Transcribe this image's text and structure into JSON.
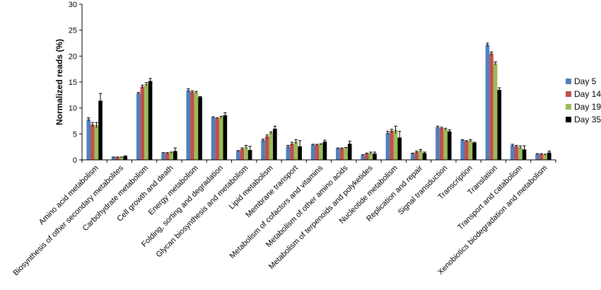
{
  "chart_data": {
    "type": "bar",
    "ylabel": "Normalized reads (%)",
    "ylim": [
      0,
      30
    ],
    "yticks": [
      0,
      5,
      10,
      15,
      20,
      25,
      30
    ],
    "categories": [
      "Amino acid metabolism",
      "Biosynthesis of other secondary metabolites",
      "Carbohydrate metabolism",
      "Cell growth and death",
      "Energy metabolism",
      "Folding, sorting and degradation",
      "Glycan biosynthesis and metabolism",
      "Lipid metabolism",
      "Membrane transport",
      "Metabolism of cofactors and vitamins",
      "Metabolism of other amino acids",
      "Metabolism of terpenoids and polyketides",
      "Nucleotide metabolism",
      "Replication and repair",
      "Signal transduction",
      "Transcription",
      "Translation",
      "Transport and catabolism",
      "Xenobiotics biodegradation and metabolism"
    ],
    "series": [
      {
        "name": "Day 5",
        "color": "#4f81bd",
        "values": [
          7.8,
          0.5,
          12.8,
          1.3,
          13.4,
          8.2,
          1.7,
          3.8,
          2.6,
          2.9,
          2.2,
          0.9,
          5.2,
          1.2,
          6.3,
          3.8,
          22.2,
          2.8,
          1.1
        ],
        "errors": [
          0.3,
          0.05,
          0.2,
          0.1,
          0.3,
          0.1,
          0.1,
          0.2,
          0.2,
          0.1,
          0.1,
          0.1,
          0.3,
          0.1,
          0.2,
          0.1,
          0.3,
          0.2,
          0.1
        ]
      },
      {
        "name": "Day 14",
        "color": "#c0504d",
        "values": [
          6.8,
          0.5,
          14.1,
          1.3,
          13.1,
          8.0,
          2.1,
          4.5,
          3.1,
          2.9,
          2.2,
          1.2,
          5.6,
          1.5,
          6.1,
          3.6,
          20.5,
          2.6,
          1.1
        ],
        "errors": [
          0.4,
          0.05,
          0.3,
          0.1,
          0.2,
          0.1,
          0.2,
          0.3,
          0.3,
          0.1,
          0.1,
          0.1,
          0.3,
          0.2,
          0.2,
          0.1,
          0.3,
          0.2,
          0.1
        ]
      },
      {
        "name": "Day 19",
        "color": "#9bbb59",
        "values": [
          6.7,
          0.5,
          14.6,
          1.4,
          13.0,
          8.2,
          2.5,
          5.2,
          3.5,
          3.0,
          2.3,
          1.3,
          5.8,
          1.8,
          5.9,
          3.7,
          18.6,
          2.4,
          1.0
        ],
        "errors": [
          0.5,
          0.05,
          0.3,
          0.1,
          0.2,
          0.2,
          0.3,
          0.2,
          0.4,
          0.1,
          0.1,
          0.2,
          0.7,
          0.2,
          0.2,
          0.2,
          0.3,
          0.3,
          0.1
        ]
      },
      {
        "name": "Day 35",
        "color": "#000000",
        "values": [
          11.4,
          0.7,
          15.2,
          1.7,
          12.1,
          8.6,
          1.9,
          6.0,
          2.6,
          3.5,
          3.1,
          1.2,
          4.3,
          1.3,
          5.5,
          3.3,
          13.5,
          2.0,
          1.4
        ],
        "errors": [
          1.4,
          0.1,
          0.5,
          0.6,
          0.1,
          0.5,
          0.7,
          0.5,
          1.1,
          0.3,
          0.5,
          0.3,
          1.2,
          0.2,
          0.3,
          0.1,
          0.4,
          0.7,
          0.3
        ]
      }
    ],
    "legend_position": "right",
    "grid": false
  }
}
